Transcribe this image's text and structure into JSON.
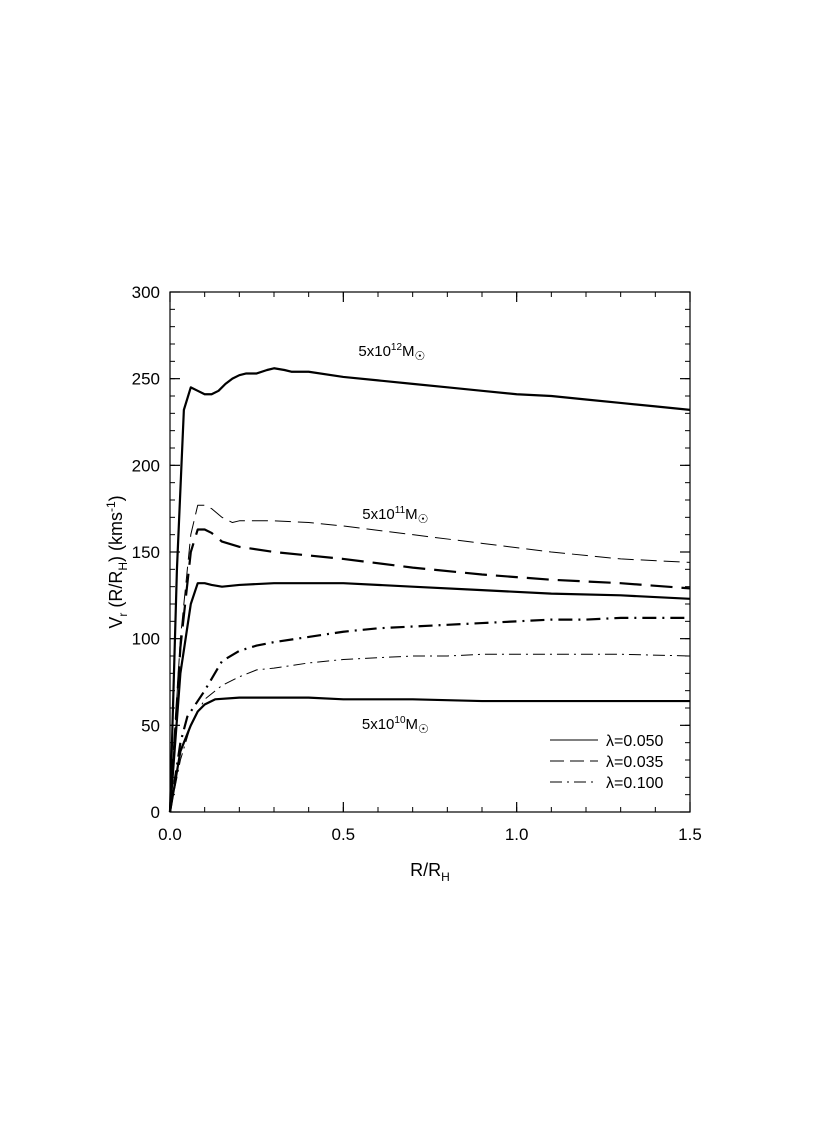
{
  "chart_data": {
    "type": "line",
    "xlabel": {
      "main": "R/R",
      "sub": "H"
    },
    "ylabel": {
      "p1": "V",
      "p1_sub": "r",
      "p2": " (R/R",
      "p2_sub": "H",
      "p3": ") (kms",
      "p3_sup": "-1",
      "p4": ")"
    },
    "xlim": [
      0.0,
      1.5
    ],
    "ylim": [
      0,
      300
    ],
    "x_ticks": [
      {
        "v": 0.0,
        "label": "0.0"
      },
      {
        "v": 0.5,
        "label": "0.5"
      },
      {
        "v": 1.0,
        "label": "1.0"
      },
      {
        "v": 1.5,
        "label": "1.5"
      }
    ],
    "y_ticks": [
      {
        "v": 0,
        "label": "0"
      },
      {
        "v": 50,
        "label": "50"
      },
      {
        "v": 100,
        "label": "100"
      },
      {
        "v": 150,
        "label": "150"
      },
      {
        "v": 200,
        "label": "200"
      },
      {
        "v": 250,
        "label": "250"
      },
      {
        "v": 300,
        "label": "300"
      }
    ],
    "x_minor_step": 0.1,
    "y_minor_step": 10,
    "annotations": [
      {
        "base": "5x10",
        "exp": "12",
        "unit": "M",
        "sym": "☉",
        "x": 0.64,
        "y": 263
      },
      {
        "base": "5x10",
        "exp": "11",
        "unit": "M",
        "sym": "☉",
        "x": 0.65,
        "y": 169
      },
      {
        "base": "5x10",
        "exp": "10",
        "unit": "M",
        "sym": "☉",
        "x": 0.65,
        "y": 48
      }
    ],
    "legend": {
      "position": "bottom-right",
      "entries": [
        {
          "label": "λ=0.050",
          "style": "solid"
        },
        {
          "label": "λ=0.035",
          "style": "dashed"
        },
        {
          "label": "λ=0.100",
          "style": "dashdot"
        }
      ]
    },
    "series": [
      {
        "style": "solid",
        "weight": "bold",
        "x": [
          0.0,
          0.02,
          0.04,
          0.06,
          0.08,
          0.1,
          0.12,
          0.14,
          0.16,
          0.18,
          0.2,
          0.22,
          0.25,
          0.28,
          0.3,
          0.33,
          0.35,
          0.4,
          0.5,
          0.6,
          0.7,
          0.8,
          0.9,
          1.0,
          1.1,
          1.2,
          1.3,
          1.4,
          1.5
        ],
        "y": [
          0,
          140,
          232,
          245,
          243,
          241,
          241,
          243,
          247,
          250,
          252,
          253,
          253,
          255,
          256,
          255,
          254,
          254,
          251,
          249,
          247,
          245,
          243,
          241,
          240,
          238,
          236,
          234,
          232
        ]
      },
      {
        "style": "dashed",
        "weight": "thin",
        "x": [
          0.0,
          0.03,
          0.06,
          0.08,
          0.1,
          0.12,
          0.15,
          0.18,
          0.2,
          0.25,
          0.3,
          0.4,
          0.5,
          0.7,
          0.9,
          1.1,
          1.3,
          1.5
        ],
        "y": [
          0,
          100,
          160,
          177,
          177,
          175,
          170,
          167,
          168,
          168,
          168,
          167,
          165,
          160,
          155,
          150,
          146,
          144
        ]
      },
      {
        "style": "dashed",
        "weight": "bold",
        "x": [
          0.0,
          0.03,
          0.06,
          0.08,
          0.1,
          0.12,
          0.15,
          0.2,
          0.3,
          0.4,
          0.5,
          0.7,
          0.9,
          1.1,
          1.3,
          1.5
        ],
        "y": [
          0,
          95,
          150,
          163,
          163,
          161,
          156,
          153,
          150,
          148,
          146,
          141,
          137,
          134,
          132,
          129
        ]
      },
      {
        "style": "solid",
        "weight": "bold",
        "x": [
          0.0,
          0.03,
          0.06,
          0.08,
          0.1,
          0.12,
          0.15,
          0.2,
          0.3,
          0.4,
          0.5,
          0.7,
          0.9,
          1.1,
          1.3,
          1.5
        ],
        "y": [
          0,
          80,
          120,
          132,
          132,
          131,
          130,
          131,
          132,
          132,
          132,
          130,
          128,
          126,
          125,
          123
        ]
      },
      {
        "style": "dashdot",
        "weight": "bold",
        "x": [
          0.0,
          0.03,
          0.05,
          0.1,
          0.15,
          0.2,
          0.25,
          0.3,
          0.4,
          0.5,
          0.6,
          0.7,
          0.8,
          0.9,
          1.0,
          1.1,
          1.2,
          1.3,
          1.5
        ],
        "y": [
          0,
          40,
          55,
          70,
          87,
          93,
          96,
          98,
          101,
          104,
          106,
          107,
          108,
          109,
          110,
          111,
          111,
          112,
          112
        ]
      },
      {
        "style": "dashdot",
        "weight": "thin",
        "x": [
          0.0,
          0.03,
          0.06,
          0.1,
          0.15,
          0.2,
          0.25,
          0.3,
          0.4,
          0.5,
          0.6,
          0.7,
          0.8,
          0.9,
          1.0,
          1.1,
          1.2,
          1.3,
          1.5
        ],
        "y": [
          0,
          30,
          50,
          65,
          73,
          78,
          82,
          83,
          86,
          88,
          89,
          90,
          90,
          91,
          91,
          91,
          91,
          91,
          90
        ]
      },
      {
        "style": "solid",
        "weight": "bold",
        "x": [
          0.0,
          0.03,
          0.06,
          0.08,
          0.1,
          0.13,
          0.2,
          0.3,
          0.4,
          0.5,
          0.7,
          0.9,
          1.1,
          1.3,
          1.5
        ],
        "y": [
          0,
          35,
          50,
          58,
          62,
          65,
          66,
          66,
          66,
          65,
          65,
          64,
          64,
          64,
          64
        ]
      }
    ]
  }
}
